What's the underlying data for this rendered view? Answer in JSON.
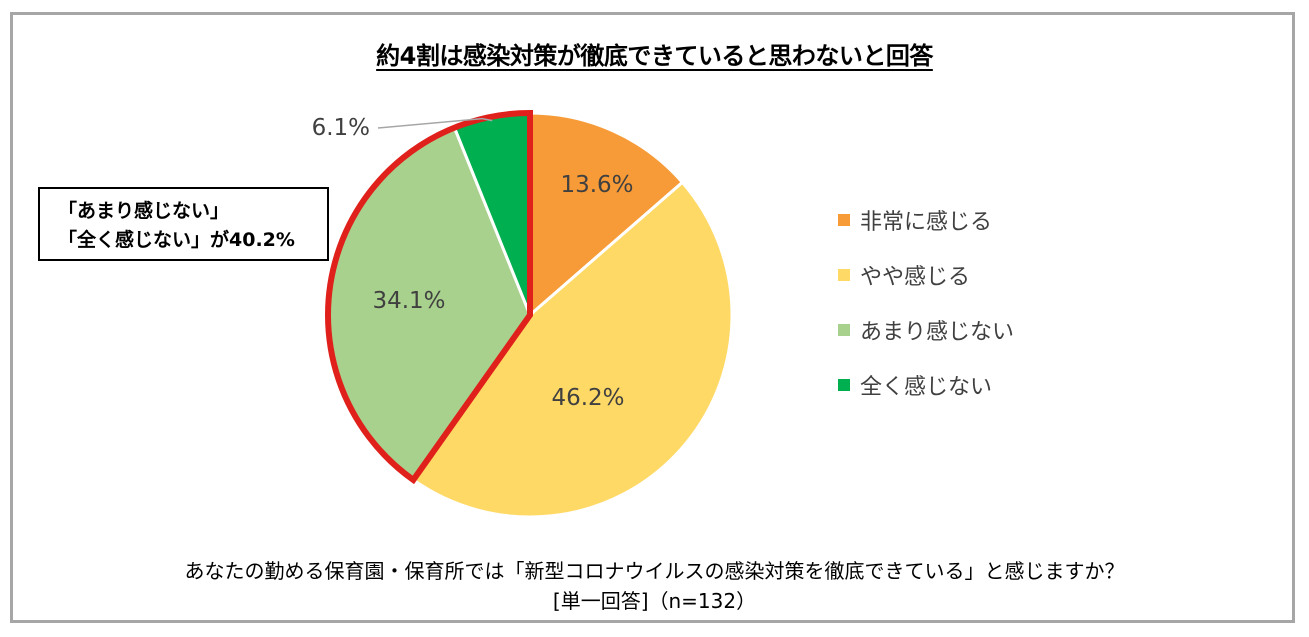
{
  "title": "約4割は感染対策が徹底できていると思わないと回答",
  "callout": {
    "line1": "「あまり感じない」",
    "line2": "「全く感じない」が40.2%"
  },
  "question": {
    "text": "あなたの勤める保育園・保育所では「新型コロナウイルスの感染対策を徹底できている」と感じますか？",
    "note": "[単一回答]（n=132）"
  },
  "chart_data": {
    "type": "pie",
    "title": "約4割は感染対策が徹底できていると思わないと回答",
    "legend_position": "right",
    "slices": [
      {
        "label": "非常に感じる",
        "value": 13.6,
        "display": "13.6%",
        "color": "#f79b38"
      },
      {
        "label": "やや感じる",
        "value": 46.2,
        "display": "46.2%",
        "color": "#ffd966"
      },
      {
        "label": "あまり感じない",
        "value": 34.1,
        "display": "34.1%",
        "color": "#a9d18e"
      },
      {
        "label": "全く感じない",
        "value": 6.1,
        "display": "6.1%",
        "color": "#00b050"
      }
    ],
    "highlight": {
      "slices": [
        "あまり感じない",
        "全く感じない"
      ],
      "color": "#e0201b"
    }
  }
}
